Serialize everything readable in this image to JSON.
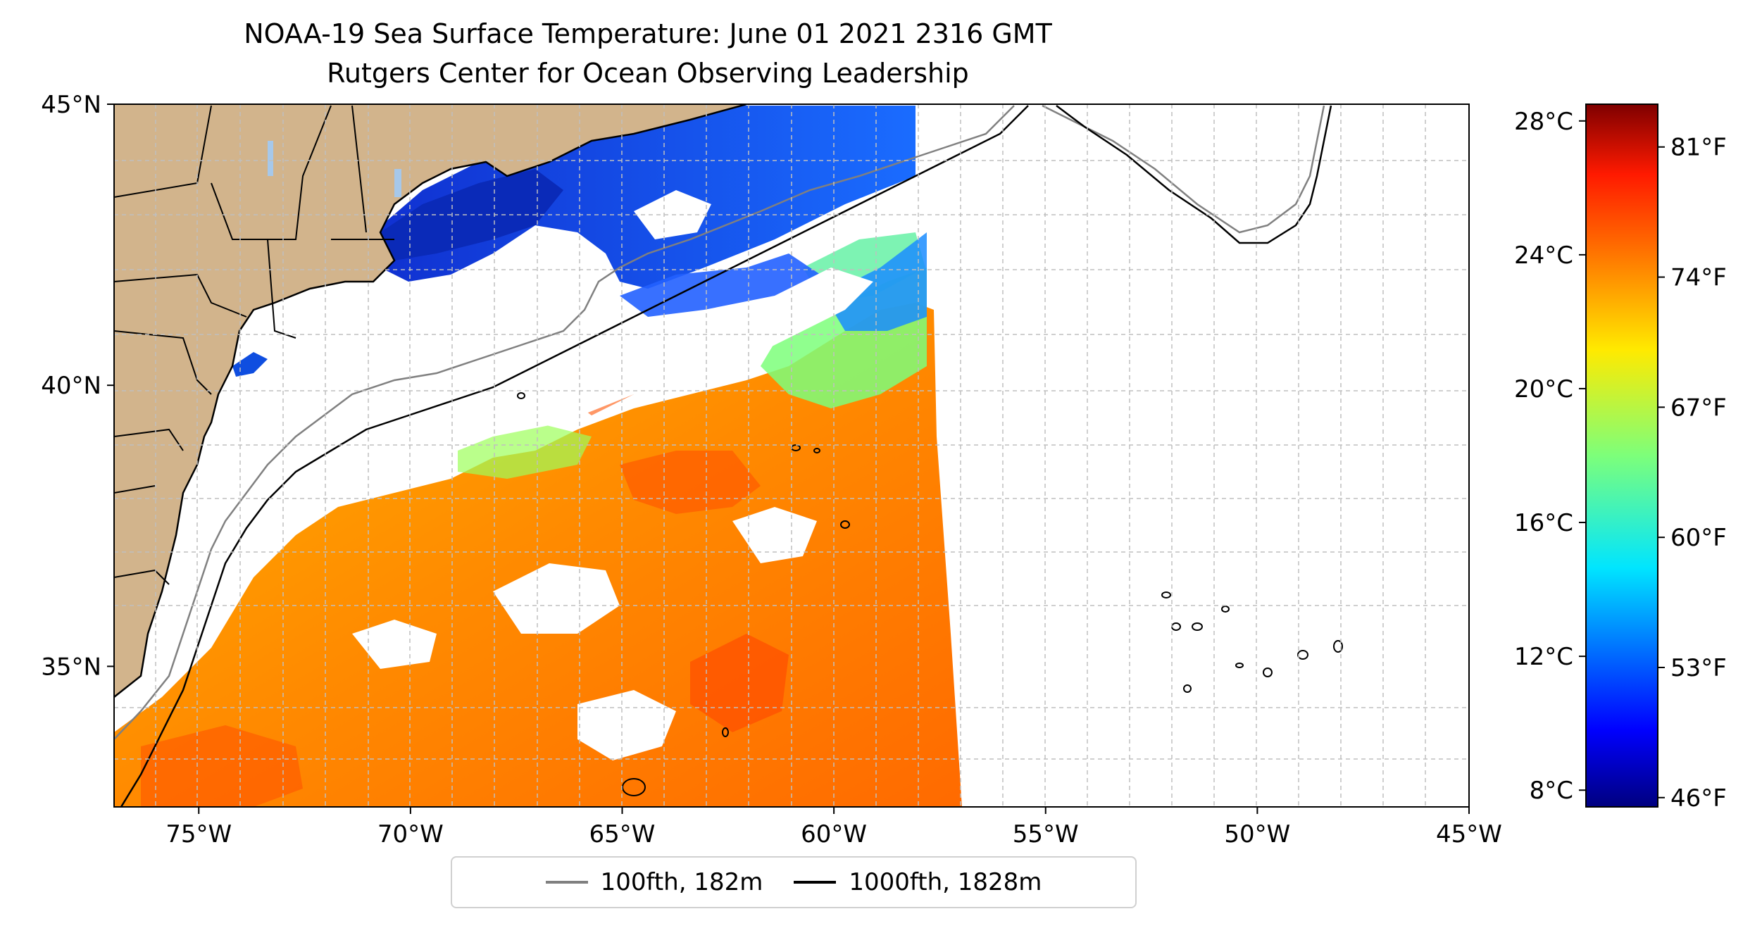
{
  "title": {
    "line1": "NOAA-19 Sea Surface Temperature: June 01 2021 2316 GMT",
    "line2": "Rutgers Center for Ocean Observing Leadership"
  },
  "map": {
    "lon_range": [
      -77,
      -45
    ],
    "lat_range": [
      32.5,
      45
    ],
    "lat_ticks": [
      {
        "value": 45,
        "label": "45°N"
      },
      {
        "value": 40,
        "label": "40°N"
      },
      {
        "value": 35,
        "label": "35°N"
      }
    ],
    "lon_ticks": [
      {
        "value": -75,
        "label": "75°W"
      },
      {
        "value": -70,
        "label": "70°W"
      },
      {
        "value": -65,
        "label": "65°W"
      },
      {
        "value": -60,
        "label": "60°W"
      },
      {
        "value": -55,
        "label": "55°W"
      },
      {
        "value": -50,
        "label": "50°W"
      },
      {
        "value": -45,
        "label": "45°W"
      }
    ],
    "grid": true,
    "colors": {
      "land": "#d2b48c",
      "ocean_nodata": "#ffffff",
      "isobath_100": "#808080",
      "isobath_1000": "#000000",
      "lakes": "#a6c8ea"
    }
  },
  "colorbar": {
    "celsius_ticks": [
      "28°C",
      "24°C",
      "20°C",
      "16°C",
      "12°C",
      "8°C"
    ],
    "fahrenheit_ticks": [
      "81°F",
      "74°F",
      "67°F",
      "60°F",
      "53°F",
      "46°F"
    ],
    "colormap": "jet",
    "celsius_range": [
      7.5,
      28.5
    ]
  },
  "legend": {
    "position": "bottom-center",
    "items": [
      {
        "label": "100fth, 182m",
        "color": "#808080"
      },
      {
        "label": "1000fth, 1828m",
        "color": "#000000"
      }
    ]
  }
}
